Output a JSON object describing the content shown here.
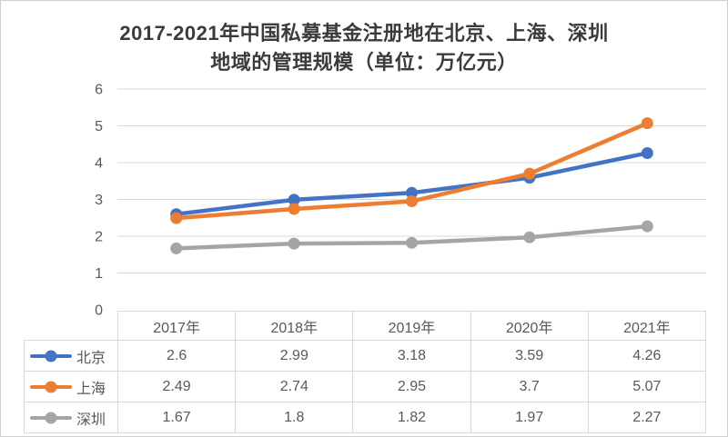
{
  "title": {
    "line1": "2017-2021年中国私募基金注册地在北京、上海、深圳",
    "line2": "地域的管理规模（单位：万亿元）"
  },
  "chart_data": {
    "type": "line",
    "title": "2017-2021年中国私募基金注册地在北京、上海、深圳地域的管理规模（单位：万亿元）",
    "categories": [
      "2017年",
      "2018年",
      "2019年",
      "2020年",
      "2021年"
    ],
    "series": [
      {
        "name": "北京",
        "color": "#4472C4",
        "values": [
          2.6,
          2.99,
          3.18,
          3.59,
          4.26
        ]
      },
      {
        "name": "上海",
        "color": "#ED7D31",
        "values": [
          2.49,
          2.74,
          2.95,
          3.7,
          5.07
        ]
      },
      {
        "name": "深圳",
        "color": "#A5A5A5",
        "values": [
          1.67,
          1.8,
          1.82,
          1.97,
          2.27
        ]
      }
    ],
    "xlabel": "",
    "ylabel": "",
    "ylim": [
      0,
      6
    ],
    "yticks": [
      0,
      1,
      2,
      3,
      4,
      5,
      6
    ],
    "grid": true,
    "marker": "circle",
    "legend_position": "table-left-column"
  },
  "colors": {
    "grid_line": "#D9D9D9",
    "axis_text": "#595959",
    "table_border": "#D9D9D9",
    "table_text": "#595959",
    "title_text": "#3B3B3B",
    "background": "#FFFFFF"
  }
}
